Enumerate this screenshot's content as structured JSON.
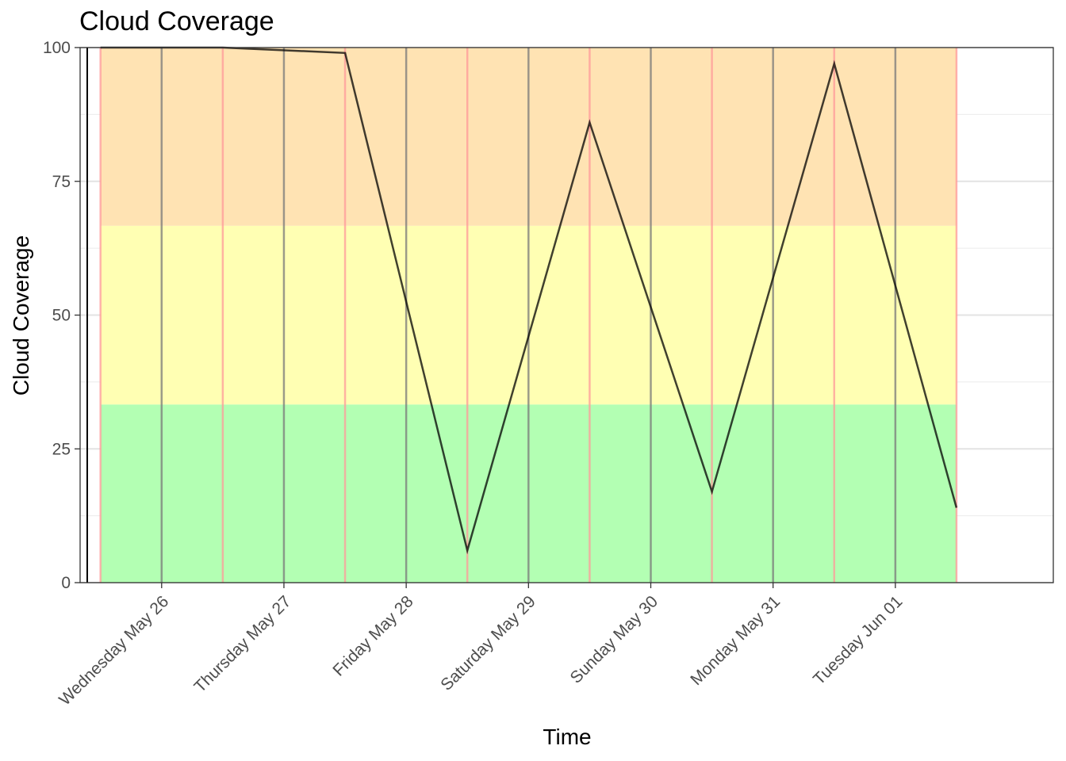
{
  "chart_data": {
    "type": "line",
    "title": "Cloud Coverage",
    "xlabel": "Time",
    "ylabel": "Cloud Coverage",
    "ylim": [
      0,
      100
    ],
    "y_ticks": [
      0,
      25,
      50,
      75,
      100
    ],
    "x_range_days": [
      "2021-05-25T08:00",
      "2021-06-02T07:00"
    ],
    "x_ticks": [
      {
        "date": "2021-05-26",
        "label": "Wednesday May 26"
      },
      {
        "date": "2021-05-27",
        "label": "Thursday May 27"
      },
      {
        "date": "2021-05-28",
        "label": "Friday May 28"
      },
      {
        "date": "2021-05-29",
        "label": "Saturday May 29"
      },
      {
        "date": "2021-05-30",
        "label": "Sunday May 30"
      },
      {
        "date": "2021-05-31",
        "label": "Monday May 31"
      },
      {
        "date": "2021-06-01",
        "label": "Tuesday Jun 01"
      }
    ],
    "bands": [
      {
        "ymin": 0,
        "ymax": 33.3,
        "color": "#b3ffb3"
      },
      {
        "ymin": 33.3,
        "ymax": 66.7,
        "color": "#ffffb3"
      },
      {
        "ymin": 66.7,
        "ymax": 100,
        "color": "#ffe3b3"
      }
    ],
    "series": [
      {
        "points": [
          {
            "x": "2021-05-25T12:00",
            "y": 100
          },
          {
            "x": "2021-05-26T12:00",
            "y": 100
          },
          {
            "x": "2021-05-27T12:00",
            "y": 99
          },
          {
            "x": "2021-05-28T12:00",
            "y": 6
          },
          {
            "x": "2021-05-29T12:00",
            "y": 86
          },
          {
            "x": "2021-05-30T12:00",
            "y": 17
          },
          {
            "x": "2021-05-31T12:00",
            "y": 97
          },
          {
            "x": "2021-06-01T12:00",
            "y": 14
          }
        ],
        "color": "#000000"
      }
    ],
    "vlines": [
      {
        "x": "2021-05-25T12:00",
        "color": "#ff9999"
      },
      {
        "x": "2021-05-26T12:00",
        "color": "#ff9999"
      },
      {
        "x": "2021-05-27T12:00",
        "color": "#ff9999"
      },
      {
        "x": "2021-05-28T12:00",
        "color": "#ff9999"
      },
      {
        "x": "2021-05-29T12:00",
        "color": "#ff9999"
      },
      {
        "x": "2021-05-30T12:00",
        "color": "#ff9999"
      },
      {
        "x": "2021-05-31T12:00",
        "color": "#ff9999"
      },
      {
        "x": "2021-06-01T12:00",
        "color": "#ff9999"
      },
      {
        "x": "2021-05-26",
        "color": "#7a7a7a"
      },
      {
        "x": "2021-05-27",
        "color": "#7a7a7a"
      },
      {
        "x": "2021-05-28",
        "color": "#7a7a7a"
      },
      {
        "x": "2021-05-29",
        "color": "#7a7a7a"
      },
      {
        "x": "2021-05-30",
        "color": "#7a7a7a"
      },
      {
        "x": "2021-05-31",
        "color": "#7a7a7a"
      },
      {
        "x": "2021-06-01",
        "color": "#7a7a7a"
      }
    ],
    "grid": true,
    "legend": "none"
  }
}
